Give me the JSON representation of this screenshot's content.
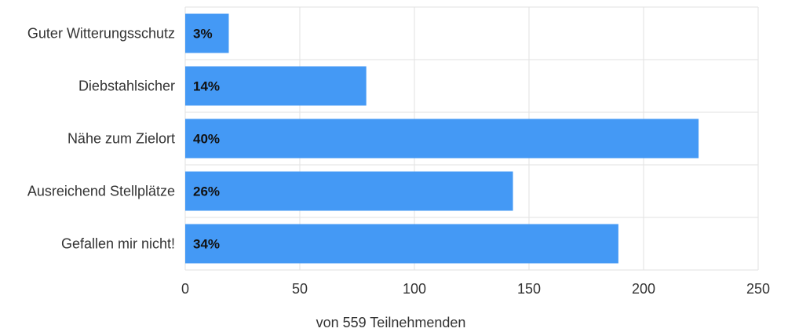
{
  "chart_data": {
    "type": "bar",
    "orientation": "horizontal",
    "title": "",
    "xlabel": "von 559 Teilnehmenden",
    "ylabel": "",
    "categories": [
      "Guter Witterungsschutz",
      "Diebstahlsicher",
      "Nähe zum Zielort",
      "Ausreichend Stellplätze",
      "Gefallen mir nicht!"
    ],
    "values": [
      19,
      79,
      224,
      143,
      189
    ],
    "data_labels": [
      "3%",
      "14%",
      "40%",
      "26%",
      "34%"
    ],
    "xlim": [
      0,
      250
    ],
    "xticks": [
      0,
      50,
      100,
      150,
      200,
      250
    ],
    "grid": true,
    "legend": "none",
    "bar_color": "#4499f5",
    "grid_color": "#e2e2e2"
  }
}
